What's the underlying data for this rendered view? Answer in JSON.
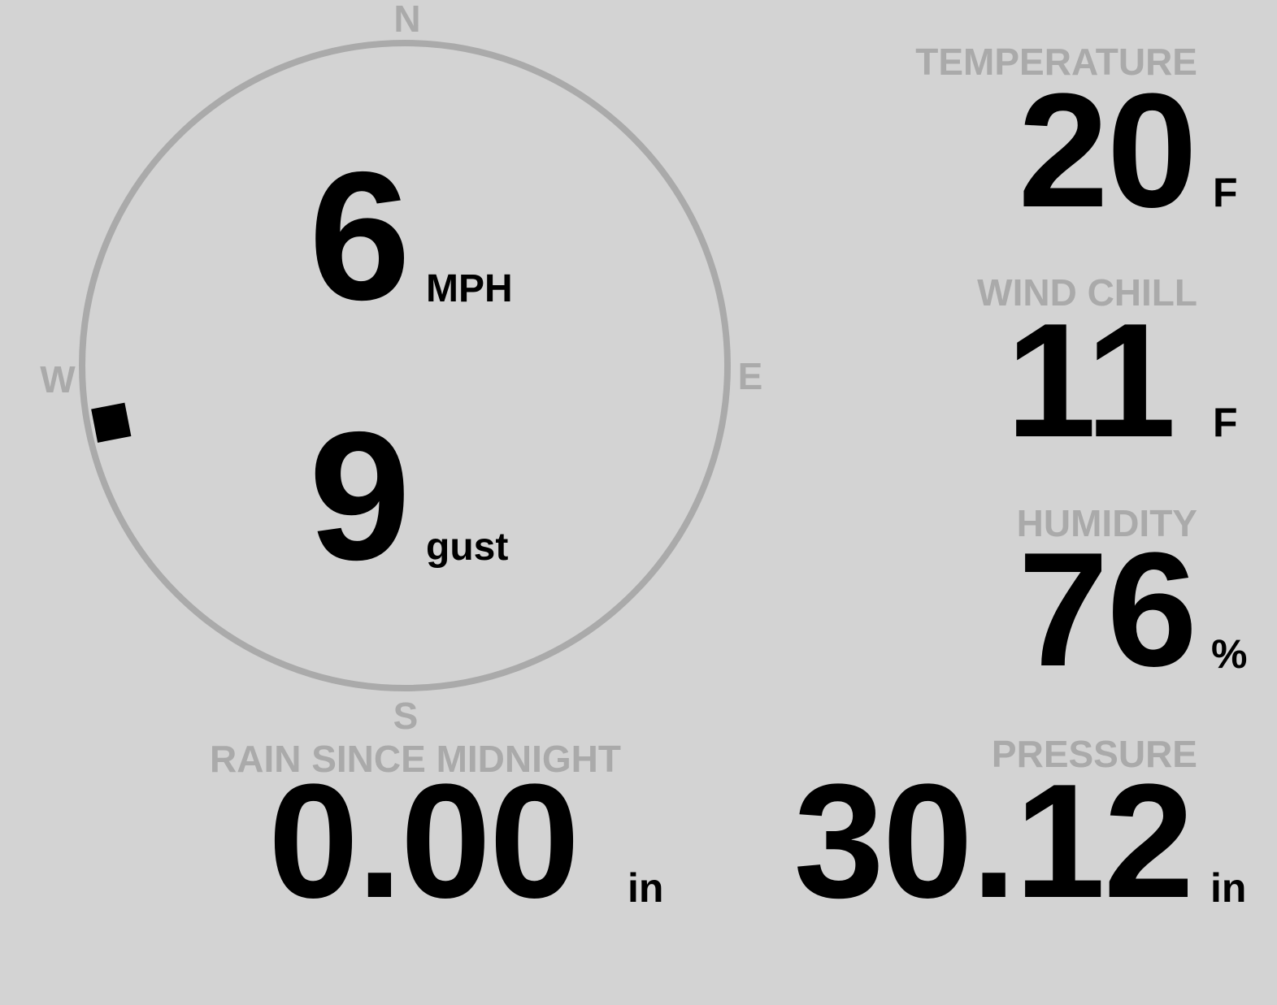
{
  "compass": {
    "north": "N",
    "south": "S",
    "east": "E",
    "west": "W",
    "wind_direction_degrees": 259,
    "ring_color": "#aaaaaa",
    "marker_color": "#000000"
  },
  "wind": {
    "speed": "6",
    "speed_unit": "MPH",
    "gust": "9",
    "gust_unit": "gust"
  },
  "temperature": {
    "label": "TEMPERATURE",
    "value": "20",
    "unit": "F"
  },
  "wind_chill": {
    "label": "WIND CHILL",
    "value": "11",
    "unit": "F"
  },
  "humidity": {
    "label": "HUMIDITY",
    "value": "76",
    "unit": "%"
  },
  "rain": {
    "label": "RAIN SINCE MIDNIGHT",
    "value": "0.00",
    "unit": "in"
  },
  "pressure": {
    "label": "PRESSURE",
    "value": "30.12",
    "unit": "in"
  },
  "colors": {
    "background": "#d3d3d3",
    "label": "#aaaaaa",
    "value": "#000000"
  }
}
